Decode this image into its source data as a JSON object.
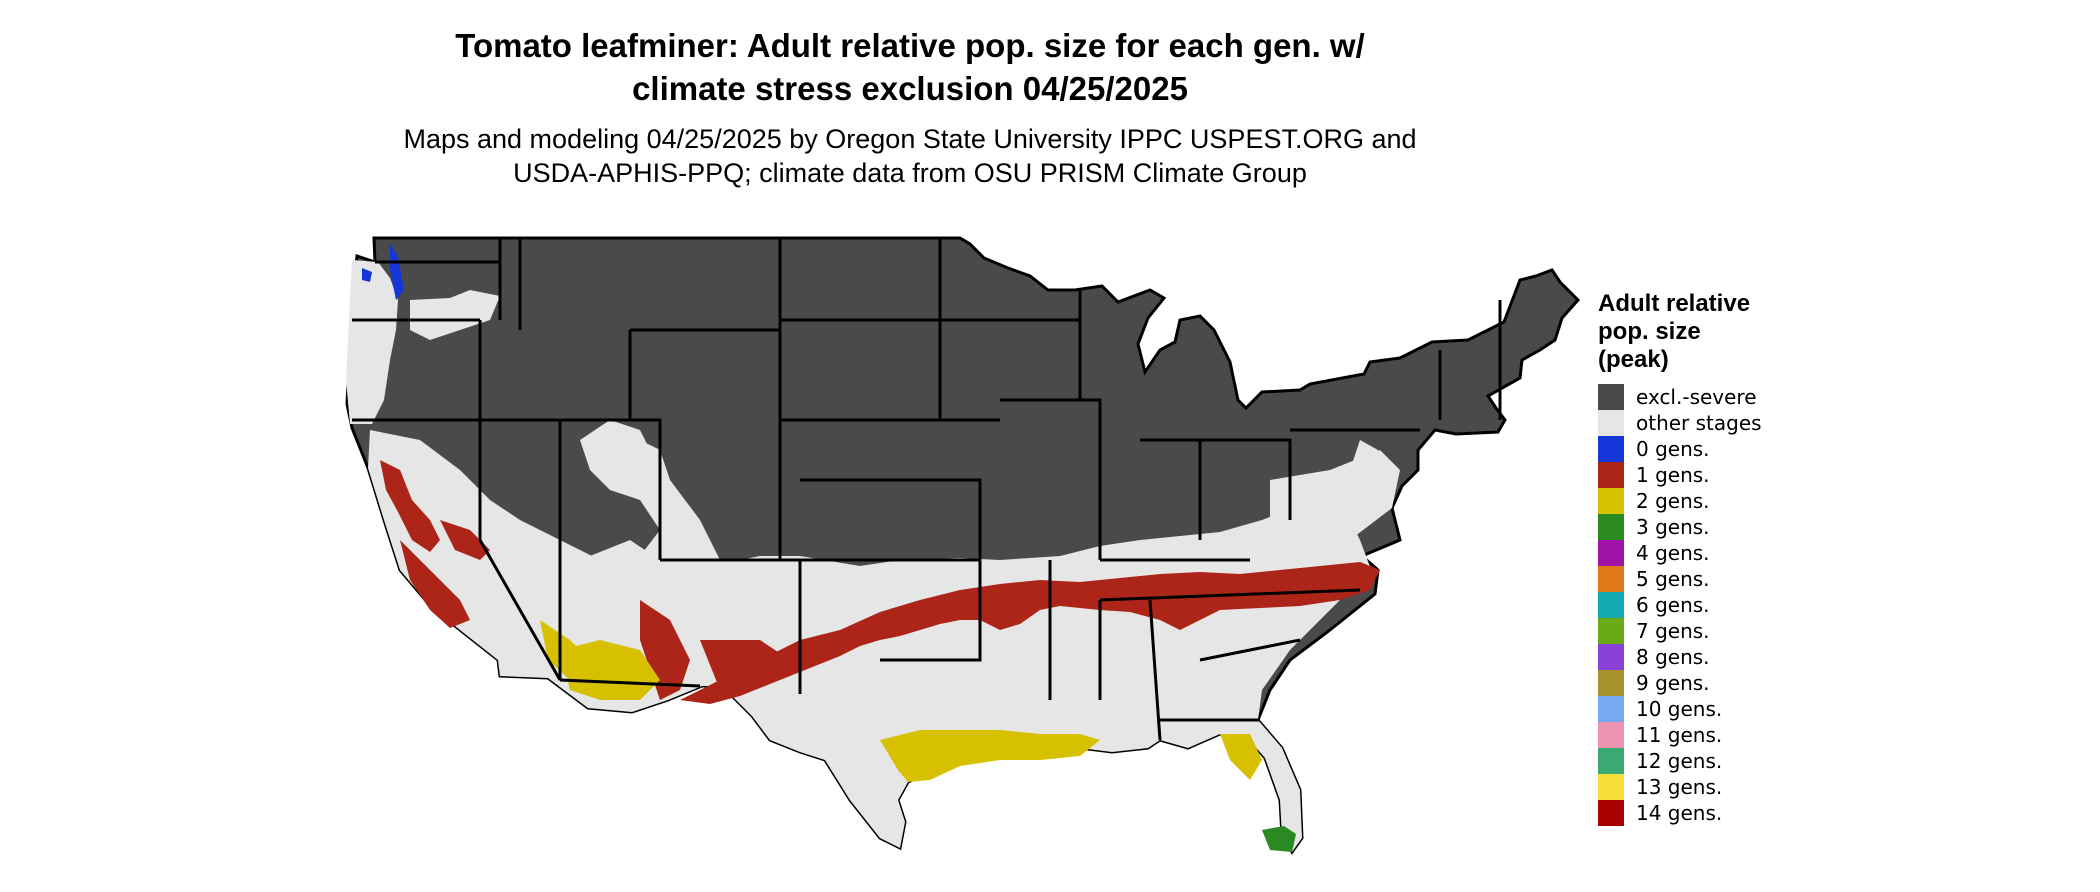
{
  "title": {
    "line1": "Tomato leafminer: Adult relative pop. size for each gen. w/",
    "line2": "climate stress exclusion 04/25/2025"
  },
  "subtitle": {
    "line1": "Maps and modeling 04/25/2025 by Oregon State University IPPC USPEST.ORG and",
    "line2": "USDA-APHIS-PPQ; climate data from OSU PRISM Climate Group"
  },
  "legend": {
    "title_lines": [
      "Adult relative",
      "pop. size",
      "(peak)"
    ],
    "items": [
      {
        "label": "excl.-severe",
        "color": "#4a4a4a"
      },
      {
        "label": "other stages",
        "color": "#e6e6e6"
      },
      {
        "label": "0 gens.",
        "color": "#1537d8"
      },
      {
        "label": "1 gens.",
        "color": "#ad2418"
      },
      {
        "label": "2 gens.",
        "color": "#d6c000"
      },
      {
        "label": "3 gens.",
        "color": "#2a8a22"
      },
      {
        "label": "4 gens.",
        "color": "#a012a8"
      },
      {
        "label": "5 gens.",
        "color": "#e0781a"
      },
      {
        "label": "6 gens.",
        "color": "#14a8b0"
      },
      {
        "label": "7 gens.",
        "color": "#6aaa14"
      },
      {
        "label": "8 gens.",
        "color": "#8a42d6"
      },
      {
        "label": "9 gens.",
        "color": "#a8922e"
      },
      {
        "label": "10 gens.",
        "color": "#76aaf0"
      },
      {
        "label": "11 gens.",
        "color": "#ee94b2"
      },
      {
        "label": "12 gens.",
        "color": "#3aaa72"
      },
      {
        "label": "13 gens.",
        "color": "#f8dc3a"
      },
      {
        "label": "14 gens.",
        "color": "#a80000"
      }
    ]
  },
  "map": {
    "colors": {
      "excluded": "#4a4a4a",
      "other": "#e6e6e6",
      "gen1": "#ad2418",
      "gen2": "#d6c000",
      "gen3": "#2a8a22",
      "gen0": "#1537d8",
      "border": "#000000"
    }
  }
}
